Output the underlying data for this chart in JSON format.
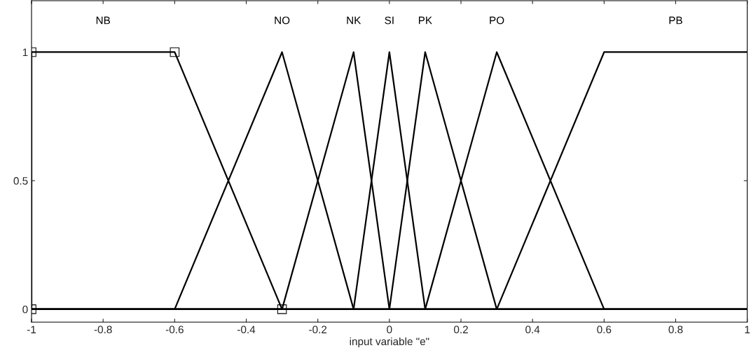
{
  "chart_data": {
    "type": "line",
    "xlabel": "input variable \"e\"",
    "xlim": [
      -1,
      1
    ],
    "ylim": [
      -0.05,
      1.2
    ],
    "xticks": [
      -1,
      -0.8,
      -0.6,
      -0.4,
      -0.2,
      0,
      0.2,
      0.4,
      0.6,
      0.8,
      1
    ],
    "yticks": [
      0,
      0.5,
      1
    ],
    "grid": false,
    "legend": false,
    "series": [
      {
        "name": "NB",
        "color": "#000000",
        "marker": "square",
        "x": [
          -1,
          -1,
          -0.6,
          -0.3
        ],
        "values": [
          0,
          1,
          1,
          0
        ]
      },
      {
        "name": "NO",
        "color": "#000000",
        "x": [
          -1,
          -0.6,
          -0.3,
          -0.1,
          1
        ],
        "values": [
          0,
          0,
          1,
          0,
          0
        ]
      },
      {
        "name": "NK",
        "color": "#000000",
        "x": [
          -1,
          -0.3,
          -0.1,
          0,
          1
        ],
        "values": [
          0,
          0,
          1,
          0,
          0
        ]
      },
      {
        "name": "SI",
        "color": "#000000",
        "x": [
          -1,
          -0.1,
          0,
          0.1,
          1
        ],
        "values": [
          0,
          0,
          1,
          0,
          0
        ]
      },
      {
        "name": "PK",
        "color": "#000000",
        "x": [
          -1,
          0,
          0.1,
          0.3,
          1
        ],
        "values": [
          0,
          0,
          1,
          0,
          0
        ]
      },
      {
        "name": "PO",
        "color": "#000000",
        "x": [
          -1,
          0.1,
          0.3,
          0.6,
          1
        ],
        "values": [
          0,
          0,
          1,
          0,
          0
        ]
      },
      {
        "name": "PB",
        "color": "#000000",
        "x": [
          -1,
          0.3,
          0.6,
          1
        ],
        "values": [
          0,
          0,
          1,
          1
        ]
      }
    ]
  }
}
